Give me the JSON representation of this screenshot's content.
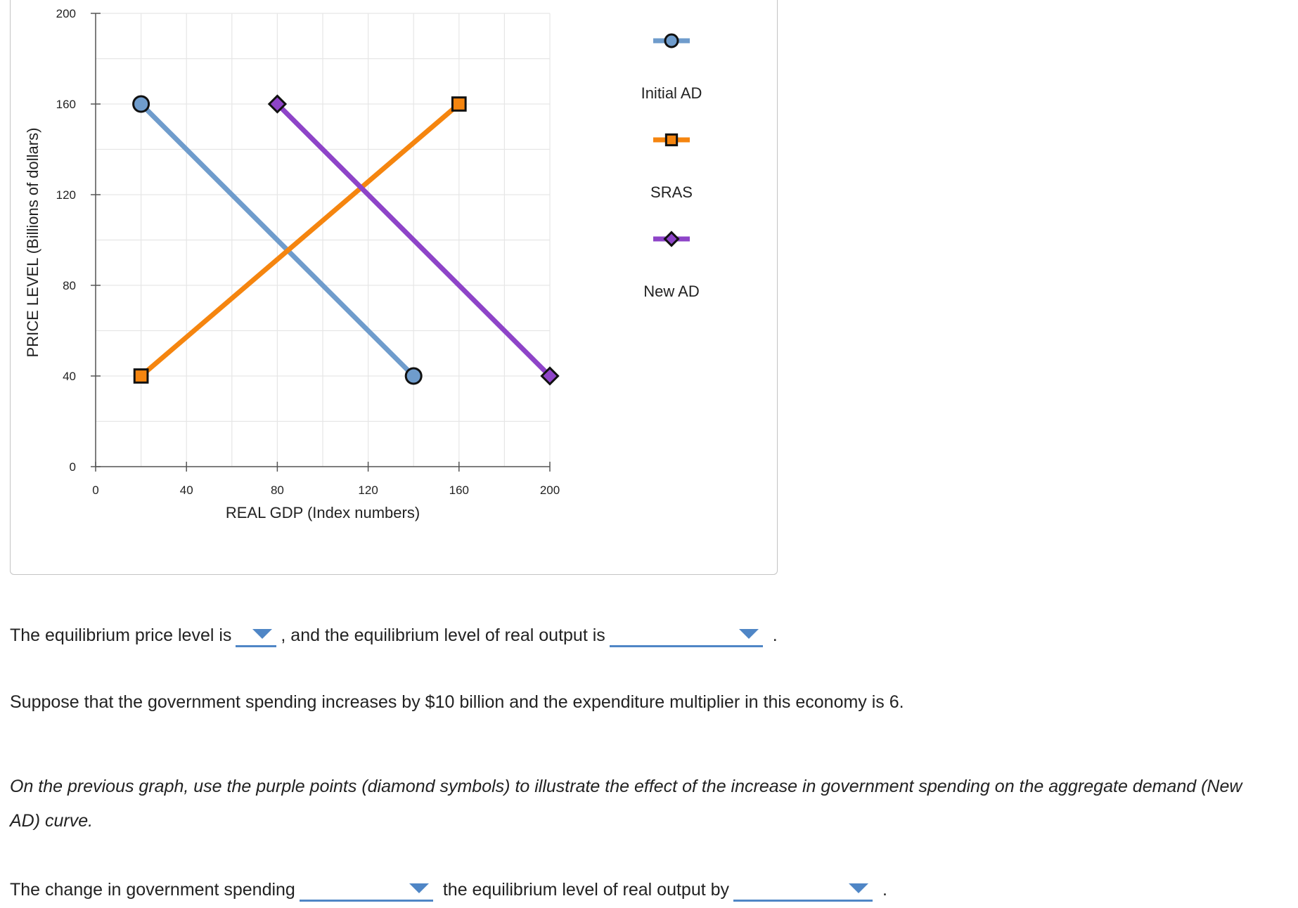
{
  "chart_data": {
    "type": "line",
    "xlabel": "REAL GDP (Index numbers)",
    "ylabel": "PRICE LEVEL (Billions of dollars)",
    "xlim": [
      0,
      200
    ],
    "ylim": [
      0,
      200
    ],
    "xticks": [
      0,
      40,
      80,
      120,
      160,
      200
    ],
    "yticks": [
      0,
      40,
      80,
      120,
      160,
      200
    ],
    "grid": true,
    "legend_placement": "right",
    "series": [
      {
        "name": "Initial AD",
        "color": "#6f9ccc",
        "marker": "circle",
        "marker_fill": "#6f9ccc",
        "points": [
          {
            "x": 20,
            "y": 160
          },
          {
            "x": 140,
            "y": 40
          }
        ]
      },
      {
        "name": "SRAS",
        "color": "#f5850f",
        "marker": "square",
        "marker_fill": "#f5850f",
        "points": [
          {
            "x": 20,
            "y": 40
          },
          {
            "x": 160,
            "y": 160
          }
        ]
      },
      {
        "name": "New AD",
        "color": "#8e44c8",
        "marker": "diamond",
        "marker_fill": "#8e44c8",
        "points": [
          {
            "x": 80,
            "y": 160
          },
          {
            "x": 200,
            "y": 40
          }
        ]
      }
    ]
  },
  "questions": {
    "q1_part1": "The equilibrium price level is",
    "q1_part2": ", and the equilibrium level of real output is",
    "q1_end": ".",
    "q2": "Suppose that the government spending increases by $10 billion and the expenditure multiplier in this economy is 6.",
    "q3": "On the previous graph, use the purple points (diamond symbols) to illustrate the effect of the increase in government spending on the aggregate demand (New AD) curve.",
    "q4_part1": "The change in government spending",
    "q4_part2": "the equilibrium level of real output by",
    "q4_end": "."
  }
}
